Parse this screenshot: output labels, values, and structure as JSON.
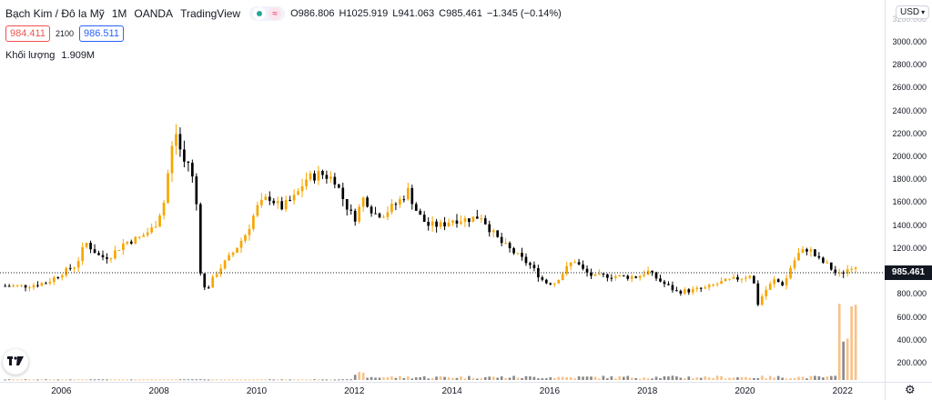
{
  "header": {
    "symbol_title": "Bạch Kim / Đô la Mỹ",
    "interval": "1M",
    "broker": "OANDA",
    "platform": "TradingView",
    "ohlc": [
      {
        "k": "O",
        "v": "986.806"
      },
      {
        "k": "H",
        "v": "1025.919"
      },
      {
        "k": "L",
        "v": "941.063"
      },
      {
        "k": "C",
        "v": "985.461"
      }
    ],
    "change": "−1.345 (−0.14%)"
  },
  "quote": {
    "bid": "984.411",
    "spread": "2100",
    "ask": "986.511"
  },
  "volume_legend": {
    "label": "Khối lượng",
    "value": "1.909M"
  },
  "currency": {
    "label": "USD",
    "icon": "chevron-down-icon"
  },
  "last_price": "985.461",
  "colors": {
    "up": "#f7a600",
    "up_volume": "#f7c28a",
    "down": "#000000",
    "down_volume": "#8a8a8a",
    "axis_text": "#131722",
    "bid": "#ef5350",
    "ask": "#2962ff"
  },
  "chart_data": {
    "type": "candlestick",
    "title": "Bạch Kim / Đô la Mỹ",
    "x_tick_labels": [
      "2006",
      "2008",
      "2010",
      "2012",
      "2014",
      "2016",
      "2018",
      "2020",
      "2022"
    ],
    "y_tick_labels": [
      "3000.000",
      "2800.000",
      "2600.000",
      "2400.000",
      "2200.000",
      "2000.000",
      "1800.000",
      "1600.000",
      "1400.000",
      "1200.000",
      "800.000",
      "600.000",
      "400.000",
      "200.000"
    ],
    "y_top_partial_label": "3200.000",
    "ylim": [
      0,
      3200
    ],
    "x_range": [
      2004.8,
      2022.6
    ],
    "last_close": 985.461,
    "price_path": [
      [
        2004.85,
        870
      ],
      [
        2005.3,
        870
      ],
      [
        2005.7,
        900
      ],
      [
        2006.0,
        980
      ],
      [
        2006.3,
        1050
      ],
      [
        2006.5,
        1250
      ],
      [
        2006.8,
        1120
      ],
      [
        2007.0,
        1130
      ],
      [
        2007.3,
        1250
      ],
      [
        2007.6,
        1290
      ],
      [
        2007.9,
        1380
      ],
      [
        2008.1,
        1600
      ],
      [
        2008.25,
        2050
      ],
      [
        2008.35,
        2200
      ],
      [
        2008.5,
        1950
      ],
      [
        2008.6,
        1950
      ],
      [
        2008.75,
        1700
      ],
      [
        2008.85,
        1000
      ],
      [
        2008.95,
        820
      ],
      [
        2009.2,
        1000
      ],
      [
        2009.5,
        1150
      ],
      [
        2009.8,
        1340
      ],
      [
        2010.0,
        1550
      ],
      [
        2010.25,
        1650
      ],
      [
        2010.5,
        1550
      ],
      [
        2010.8,
        1650
      ],
      [
        2011.0,
        1800
      ],
      [
        2011.3,
        1850
      ],
      [
        2011.6,
        1800
      ],
      [
        2011.8,
        1600
      ],
      [
        2012.0,
        1450
      ],
      [
        2012.2,
        1650
      ],
      [
        2012.4,
        1500
      ],
      [
        2012.6,
        1500
      ],
      [
        2012.9,
        1600
      ],
      [
        2013.1,
        1700
      ],
      [
        2013.3,
        1500
      ],
      [
        2013.5,
        1400
      ],
      [
        2013.8,
        1400
      ],
      [
        2014.0,
        1450
      ],
      [
        2014.3,
        1450
      ],
      [
        2014.6,
        1480
      ],
      [
        2014.8,
        1350
      ],
      [
        2015.0,
        1250
      ],
      [
        2015.3,
        1150
      ],
      [
        2015.6,
        1050
      ],
      [
        2015.9,
        900
      ],
      [
        2016.1,
        900
      ],
      [
        2016.3,
        1000
      ],
      [
        2016.5,
        1100
      ],
      [
        2016.7,
        1000
      ],
      [
        2016.9,
        950
      ],
      [
        2017.2,
        960
      ],
      [
        2017.5,
        950
      ],
      [
        2017.8,
        950
      ],
      [
        2018.0,
        1000
      ],
      [
        2018.3,
        900
      ],
      [
        2018.6,
        820
      ],
      [
        2018.9,
        830
      ],
      [
        2019.2,
        850
      ],
      [
        2019.5,
        900
      ],
      [
        2019.8,
        930
      ],
      [
        2020.0,
        950
      ],
      [
        2020.15,
        980
      ],
      [
        2020.25,
        700
      ],
      [
        2020.4,
        820
      ],
      [
        2020.6,
        920
      ],
      [
        2020.8,
        880
      ],
      [
        2020.95,
        1050
      ],
      [
        2021.1,
        1150
      ],
      [
        2021.3,
        1200
      ],
      [
        2021.5,
        1100
      ],
      [
        2021.7,
        1050
      ],
      [
        2021.9,
        960
      ],
      [
        2022.05,
        1000
      ],
      [
        2022.2,
        1050
      ],
      [
        2022.3,
        985
      ]
    ],
    "volume_note": "volume bars along bottom, small until 2021.9 then spiking to ~880 (in price-scale units)"
  }
}
